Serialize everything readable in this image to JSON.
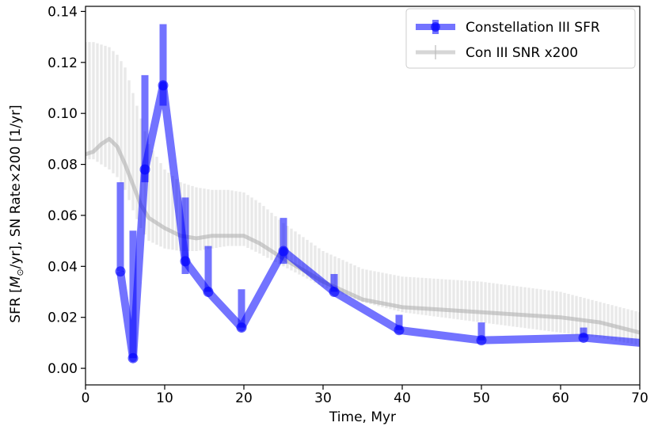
{
  "chart_data": {
    "type": "line",
    "xlabel": "Time, Myr",
    "ylabel_parts": [
      "SFR [",
      "M",
      "⊙",
      "/yr], SN Rate×200 [1/yr]"
    ],
    "xlim": [
      0,
      70
    ],
    "ylim": [
      -0.0065,
      0.142
    ],
    "x_ticks": [
      0,
      10,
      20,
      30,
      40,
      50,
      60,
      70
    ],
    "y_ticks": [
      0.0,
      0.02,
      0.04,
      0.06,
      0.08,
      0.1,
      0.12,
      0.14
    ],
    "y_tick_labels": [
      "0.00",
      "0.02",
      "0.04",
      "0.06",
      "0.08",
      "0.10",
      "0.12",
      "0.14"
    ],
    "legend_position": "upper-right",
    "series": [
      {
        "name": "Constellation III SFR",
        "color": "#0000ff",
        "x": [
          4.4,
          6.0,
          7.5,
          9.8,
          12.6,
          15.5,
          19.7,
          25.0,
          31.4,
          39.6,
          50.0,
          62.9,
          70.0
        ],
        "y": [
          0.038,
          0.004,
          0.078,
          0.111,
          0.042,
          0.03,
          0.016,
          0.046,
          0.03,
          0.015,
          0.011,
          0.012,
          0.01
        ],
        "err_upper": [
          0.073,
          0.054,
          0.115,
          0.135,
          0.067,
          0.048,
          0.031,
          0.059,
          0.037,
          0.021,
          0.018,
          0.016,
          null
        ],
        "err_lower": [
          0.038,
          0.004,
          0.073,
          0.103,
          0.037,
          0.03,
          0.016,
          0.041,
          0.03,
          0.015,
          0.011,
          0.012,
          null
        ]
      },
      {
        "name": "Con III SNR x200",
        "color": "#bbbbbb",
        "x": [
          0,
          1,
          2,
          3,
          4,
          5,
          6,
          7,
          8,
          10,
          12,
          14,
          16,
          18,
          20,
          22,
          25,
          30,
          35,
          40,
          45,
          50,
          55,
          60,
          65,
          70
        ],
        "y": [
          0.084,
          0.085,
          0.088,
          0.09,
          0.087,
          0.08,
          0.072,
          0.064,
          0.059,
          0.055,
          0.052,
          0.051,
          0.052,
          0.052,
          0.052,
          0.049,
          0.043,
          0.034,
          0.027,
          0.024,
          0.023,
          0.022,
          0.021,
          0.02,
          0.018,
          0.014
        ],
        "band_upper": [
          0.128,
          0.128,
          0.127,
          0.126,
          0.123,
          0.118,
          0.108,
          0.098,
          0.088,
          0.078,
          0.073,
          0.071,
          0.07,
          0.07,
          0.069,
          0.065,
          0.057,
          0.046,
          0.039,
          0.036,
          0.035,
          0.034,
          0.032,
          0.03,
          0.026,
          0.022
        ],
        "band_lower": [
          0.082,
          0.082,
          0.08,
          0.078,
          0.075,
          0.07,
          0.062,
          0.055,
          0.05,
          0.047,
          0.046,
          0.046,
          0.047,
          0.048,
          0.048,
          0.045,
          0.04,
          0.032,
          0.026,
          0.022,
          0.02,
          0.018,
          0.016,
          0.014,
          0.012,
          0.009
        ]
      }
    ]
  }
}
